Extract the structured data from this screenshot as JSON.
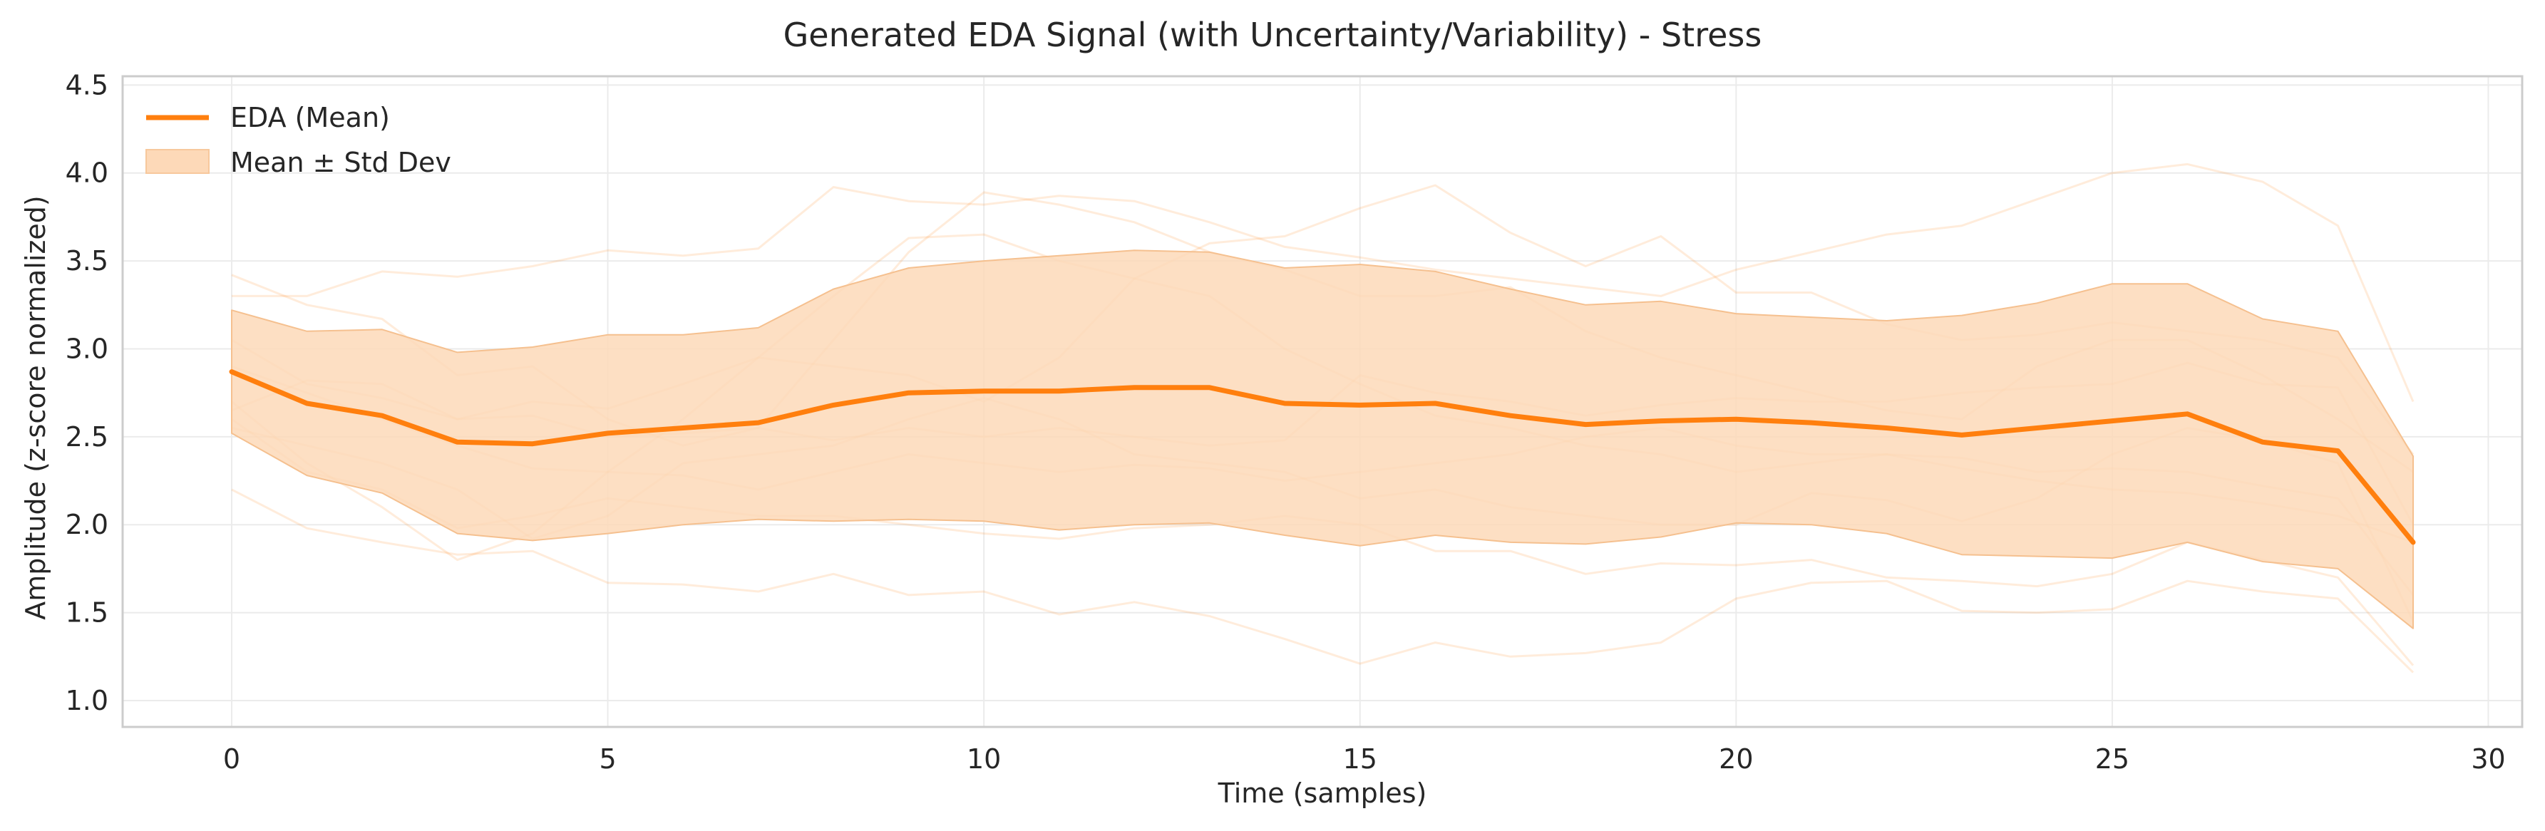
{
  "chart_data": {
    "type": "line",
    "title": "Generated EDA Signal (with Uncertainty/Variability) - Stress",
    "xlabel": "Time (samples)",
    "ylabel": "Amplitude (z-score normalized)",
    "xlim": [
      -1.45,
      30.45
    ],
    "ylim": [
      0.85,
      4.55
    ],
    "xticks": [
      0,
      5,
      10,
      15,
      20,
      25,
      30
    ],
    "yticks": [
      1.0,
      1.5,
      2.0,
      2.5,
      3.0,
      3.5,
      4.0,
      4.5
    ],
    "xtick_labels": [
      "0",
      "5",
      "10",
      "15",
      "20",
      "25",
      "30"
    ],
    "ytick_labels": [
      "1.0",
      "1.5",
      "2.0",
      "2.5",
      "3.0",
      "3.5",
      "4.0",
      "4.5"
    ],
    "grid": true,
    "legend_position": "top-left",
    "colors": {
      "mean": "#ff7f0e",
      "band": "#fdd9b8",
      "samples": "#ff7f0e"
    },
    "x": [
      0,
      1,
      2,
      3,
      4,
      5,
      6,
      7,
      8,
      9,
      10,
      11,
      12,
      13,
      14,
      15,
      16,
      17,
      18,
      19,
      20,
      21,
      22,
      23,
      24,
      25,
      26,
      27,
      28,
      29
    ],
    "series": [
      {
        "name": "EDA (Mean)",
        "kind": "mean",
        "values": [
          2.87,
          2.69,
          2.62,
          2.47,
          2.46,
          2.52,
          2.55,
          2.58,
          2.68,
          2.75,
          2.76,
          2.76,
          2.78,
          2.78,
          2.69,
          2.68,
          2.69,
          2.62,
          2.57,
          2.59,
          2.6,
          2.58,
          2.55,
          2.51,
          2.55,
          2.59,
          2.63,
          2.47,
          2.42,
          1.9
        ]
      },
      {
        "name": "Mean ± Std Dev",
        "kind": "band",
        "lower": [
          2.52,
          2.28,
          2.18,
          1.95,
          1.91,
          1.95,
          2.0,
          2.03,
          2.02,
          2.03,
          2.02,
          1.97,
          2.0,
          2.01,
          1.94,
          1.88,
          1.94,
          1.9,
          1.89,
          1.93,
          2.01,
          2.0,
          1.95,
          1.83,
          1.82,
          1.81,
          1.9,
          1.79,
          1.75,
          1.41
        ],
        "upper": [
          3.22,
          3.1,
          3.11,
          2.98,
          3.01,
          3.08,
          3.08,
          3.12,
          3.34,
          3.46,
          3.5,
          3.53,
          3.56,
          3.55,
          3.46,
          3.48,
          3.44,
          3.34,
          3.25,
          3.27,
          3.2,
          3.18,
          3.16,
          3.19,
          3.26,
          3.37,
          3.37,
          3.17,
          3.1,
          2.39
        ]
      },
      {
        "kind": "sample",
        "values": [
          3.42,
          3.25,
          3.17,
          2.85,
          2.9,
          2.6,
          2.45,
          2.55,
          3.05,
          3.55,
          3.89,
          3.82,
          3.72,
          3.55,
          3.45,
          3.3,
          3.3,
          3.35,
          3.1,
          2.95,
          2.85,
          2.75,
          2.65,
          2.6,
          2.9,
          3.05,
          3.05,
          2.85,
          2.6,
          2.3
        ]
      },
      {
        "kind": "sample",
        "values": [
          3.3,
          3.3,
          3.44,
          3.41,
          3.47,
          3.56,
          3.53,
          3.57,
          3.92,
          3.84,
          3.82,
          3.87,
          3.84,
          3.72,
          3.58,
          3.52,
          3.45,
          3.4,
          3.35,
          3.3,
          3.45,
          3.55,
          3.65,
          3.7,
          3.85,
          4.0,
          4.05,
          3.95,
          3.7,
          2.7
        ]
      },
      {
        "kind": "sample",
        "values": [
          2.2,
          1.98,
          1.9,
          1.83,
          1.85,
          1.67,
          1.66,
          1.62,
          1.72,
          1.6,
          1.62,
          1.49,
          1.56,
          1.48,
          1.35,
          1.21,
          1.33,
          1.25,
          1.27,
          1.33,
          1.58,
          1.67,
          1.68,
          1.51,
          1.5,
          1.52,
          1.68,
          1.62,
          1.58,
          1.16
        ]
      },
      {
        "kind": "sample",
        "values": [
          2.55,
          2.45,
          2.35,
          2.2,
          1.92,
          2.05,
          2.35,
          2.4,
          2.45,
          2.6,
          2.72,
          2.6,
          2.4,
          2.35,
          2.3,
          2.15,
          2.2,
          2.1,
          2.05,
          2.0,
          2.0,
          2.18,
          2.14,
          2.02,
          2.15,
          2.4,
          2.55,
          2.48,
          2.35,
          1.45
        ]
      },
      {
        "kind": "sample",
        "values": [
          2.65,
          2.82,
          2.8,
          2.6,
          2.7,
          2.66,
          2.8,
          2.95,
          2.9,
          2.85,
          2.7,
          2.95,
          3.4,
          3.6,
          3.64,
          3.8,
          3.93,
          3.66,
          3.47,
          3.64,
          3.32,
          3.32,
          3.14,
          3.05,
          3.08,
          3.15,
          3.1,
          3.05,
          2.95,
          2.4
        ]
      },
      {
        "kind": "sample",
        "values": [
          3.05,
          2.8,
          2.72,
          2.6,
          2.62,
          2.5,
          2.52,
          2.55,
          2.48,
          2.55,
          2.5,
          2.55,
          2.5,
          2.45,
          2.48,
          2.85,
          2.75,
          2.7,
          2.62,
          2.68,
          2.72,
          2.7,
          2.7,
          2.75,
          2.78,
          2.8,
          2.92,
          2.8,
          2.78,
          2.0
        ]
      },
      {
        "kind": "sample",
        "values": [
          2.7,
          2.35,
          2.1,
          1.8,
          1.95,
          2.3,
          2.6,
          2.95,
          3.3,
          3.63,
          3.65,
          3.5,
          3.4,
          3.3,
          3.0,
          2.8,
          2.62,
          2.55,
          2.45,
          2.4,
          2.3,
          2.35,
          2.4,
          2.32,
          2.25,
          2.2,
          2.18,
          2.12,
          2.05,
          1.9
        ]
      },
      {
        "kind": "sample",
        "values": [
          2.6,
          2.3,
          2.2,
          1.98,
          2.05,
          2.15,
          2.1,
          2.05,
          2.05,
          2.0,
          1.95,
          1.92,
          1.98,
          2.0,
          2.05,
          2.0,
          1.85,
          1.85,
          1.72,
          1.78,
          1.77,
          1.8,
          1.7,
          1.68,
          1.65,
          1.72,
          1.9,
          1.8,
          1.7,
          1.2
        ]
      },
      {
        "kind": "sample",
        "values": [
          2.9,
          2.75,
          2.6,
          2.45,
          2.32,
          2.3,
          2.28,
          2.2,
          2.3,
          2.4,
          2.35,
          2.3,
          2.34,
          2.32,
          2.25,
          2.3,
          2.35,
          2.4,
          2.5,
          2.55,
          2.45,
          2.4,
          2.4,
          2.38,
          2.3,
          2.32,
          2.3,
          2.22,
          2.15,
          1.6
        ]
      }
    ]
  }
}
